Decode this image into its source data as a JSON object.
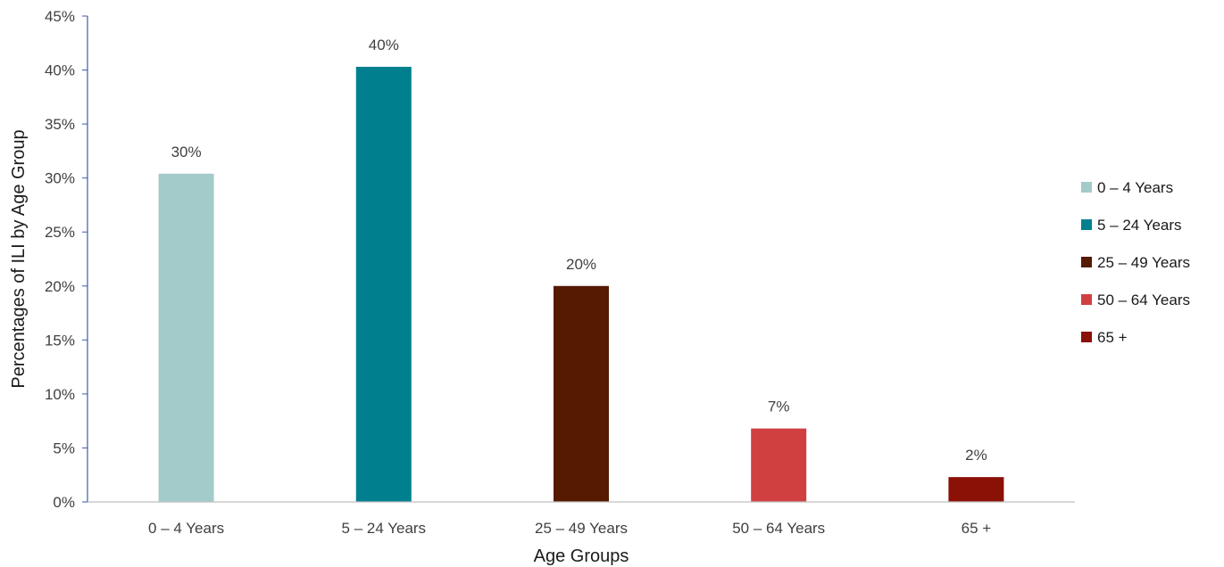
{
  "chart_data": {
    "type": "bar",
    "categories": [
      "0 – 4 Years",
      "5 – 24 Years",
      "25 – 49 Years",
      "50 – 64 Years",
      "65 +"
    ],
    "values": [
      30.4,
      40.3,
      20.0,
      6.8,
      2.3
    ],
    "data_labels": [
      "30%",
      "40%",
      "20%",
      "7%",
      "2%"
    ],
    "colors": [
      "#a3cbca",
      "#00808e",
      "#551a00",
      "#d04040",
      "#8b1006"
    ],
    "xlabel": "Age Groups",
    "ylabel": "Percentages of ILI by Age Group",
    "ylim": [
      0,
      45
    ],
    "y_ticks": [
      0,
      5,
      10,
      15,
      20,
      25,
      30,
      35,
      40,
      45
    ],
    "y_tick_labels": [
      "0%",
      "5%",
      "10%",
      "15%",
      "20%",
      "25%",
      "30%",
      "35%",
      "40%",
      "45%"
    ],
    "grid": false,
    "legend": {
      "position": "right",
      "entries": [
        "0 – 4 Years",
        "5 – 24 Years",
        "25 – 49 Years",
        "50 – 64 Years",
        "65 +"
      ]
    },
    "axis_color": "#3d5aa6"
  }
}
